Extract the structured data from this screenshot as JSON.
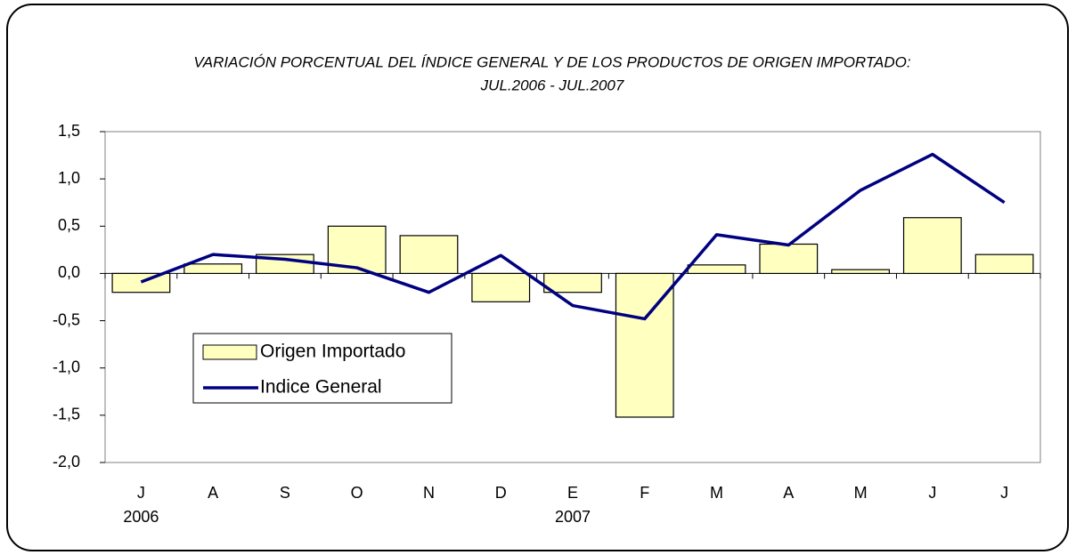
{
  "chart_data": {
    "type": "bar_line",
    "title": "VARIACIÓN PORCENTUAL DEL ÍNDICE GENERAL Y DE LOS PRODUCTOS DE ORIGEN IMPORTADO:",
    "subtitle": "JUL.2006 - JUL.2007",
    "categories": [
      "J",
      "A",
      "S",
      "O",
      "N",
      "D",
      "E",
      "F",
      "M",
      "A",
      "M",
      "J",
      "J"
    ],
    "year_labels": [
      "2006",
      null,
      null,
      null,
      null,
      null,
      "2007",
      null,
      null,
      null,
      null,
      null,
      null
    ],
    "series": [
      {
        "name": "Origen Importado",
        "type": "bar",
        "color": "#ffffc0",
        "values": [
          -0.2,
          0.1,
          0.2,
          0.5,
          0.4,
          -0.3,
          -0.2,
          -1.52,
          0.09,
          0.31,
          0.04,
          0.59,
          0.2
        ]
      },
      {
        "name": "Indice General",
        "type": "line",
        "color": "#000080",
        "values": [
          -0.09,
          0.2,
          0.15,
          0.06,
          -0.2,
          0.19,
          -0.34,
          -0.48,
          0.41,
          0.3,
          0.88,
          1.26,
          0.75
        ]
      }
    ],
    "ylim": [
      -2.0,
      1.5
    ],
    "yticks": [
      {
        "value": -2.0,
        "label": "-2,0"
      },
      {
        "value": -1.5,
        "label": "-1,5"
      },
      {
        "value": -1.0,
        "label": "-1,0"
      },
      {
        "value": -0.5,
        "label": "-0,5"
      },
      {
        "value": 0.0,
        "label": "0,0"
      },
      {
        "value": 0.5,
        "label": "0,5"
      },
      {
        "value": 1.0,
        "label": "1,0"
      },
      {
        "value": 1.5,
        "label": "1,5"
      }
    ]
  }
}
